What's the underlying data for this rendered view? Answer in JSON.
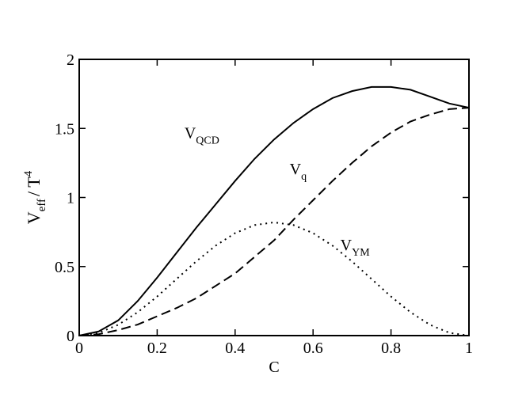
{
  "chart_data": {
    "type": "line",
    "xlabel": "C",
    "ylabel": {
      "base": "V",
      "sub": "eff",
      "mid": "/ T",
      "sup": "4"
    },
    "x": [
      0,
      0.05,
      0.1,
      0.15,
      0.2,
      0.25,
      0.3,
      0.35,
      0.4,
      0.45,
      0.5,
      0.55,
      0.6,
      0.65,
      0.7,
      0.75,
      0.8,
      0.85,
      0.9,
      0.95,
      1
    ],
    "series": [
      {
        "label": {
          "base": "V",
          "sub": "QCD"
        },
        "color": "#000000",
        "linestyle": "solid",
        "values": [
          0,
          0.03,
          0.11,
          0.25,
          0.42,
          0.6,
          0.78,
          0.95,
          1.12,
          1.28,
          1.42,
          1.54,
          1.64,
          1.72,
          1.77,
          1.8,
          1.8,
          1.78,
          1.73,
          1.68,
          1.65
        ]
      },
      {
        "label": {
          "base": "V",
          "sub": "q"
        },
        "color": "#000000",
        "linestyle": "dashed",
        "values": [
          0,
          0.01,
          0.04,
          0.08,
          0.14,
          0.2,
          0.27,
          0.36,
          0.45,
          0.57,
          0.69,
          0.84,
          0.98,
          1.12,
          1.25,
          1.37,
          1.47,
          1.55,
          1.6,
          1.64,
          1.65
        ]
      },
      {
        "label": {
          "base": "V",
          "sub": "YM"
        },
        "color": "#000000",
        "linestyle": "dotted",
        "values": [
          0,
          0.02,
          0.078,
          0.169,
          0.283,
          0.41,
          0.537,
          0.651,
          0.742,
          0.8,
          0.82,
          0.8,
          0.742,
          0.651,
          0.537,
          0.41,
          0.283,
          0.169,
          0.078,
          0.02,
          0
        ]
      }
    ],
    "xlim": [
      0,
      1
    ],
    "xticks": [
      0,
      0.2,
      0.4,
      0.6,
      0.8,
      1
    ],
    "ylim": [
      0,
      2
    ],
    "yticks": [
      0,
      0.5,
      1,
      1.5,
      2
    ]
  }
}
